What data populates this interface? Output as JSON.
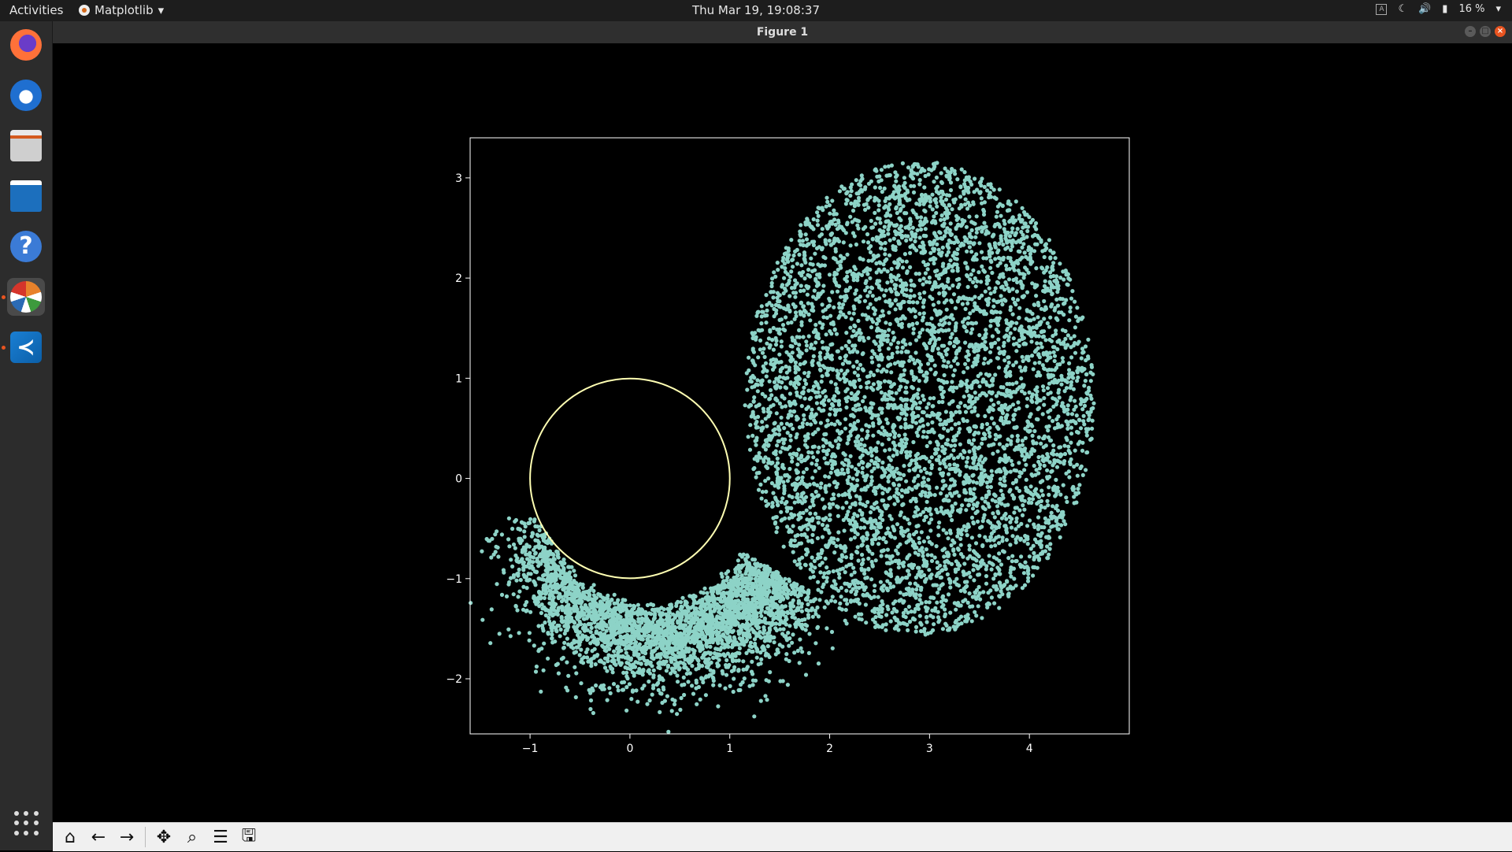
{
  "topbar": {
    "activities": "Activities",
    "app_name": "Matplotlib",
    "app_menu_arrow": "▾",
    "clock": "Thu Mar 19, 19:08:37",
    "tray_a": "A",
    "battery": "16 %",
    "tray_arrow": "▾"
  },
  "dock": {
    "items": [
      "Firefox",
      "Thunderbird",
      "Files",
      "LibreOffice Writer",
      "Help",
      "Matplotlib",
      "Visual Studio Code"
    ],
    "show_apps_icon": "grid-icon"
  },
  "window": {
    "title": "Figure 1",
    "controls": [
      "minimize",
      "maximize",
      "close"
    ]
  },
  "toolbar": {
    "buttons": [
      {
        "name": "home",
        "glyph": "⌂"
      },
      {
        "name": "back",
        "glyph": "←"
      },
      {
        "name": "forward",
        "glyph": "→"
      },
      {
        "name": "pan",
        "glyph": "✥"
      },
      {
        "name": "zoom",
        "glyph": "⌕"
      },
      {
        "name": "configure",
        "glyph": "☰"
      },
      {
        "name": "save",
        "glyph": "🖫"
      }
    ]
  },
  "chart_data": {
    "type": "scatter",
    "title": "",
    "xlabel": "",
    "ylabel": "",
    "xlim": [
      -1.6,
      5.0
    ],
    "ylim": [
      -2.55,
      3.4
    ],
    "xticks": [
      -1,
      0,
      1,
      2,
      3,
      4
    ],
    "yticks": [
      -2,
      -1,
      0,
      1,
      2,
      3
    ],
    "xtick_labels": [
      "−1",
      "0",
      "1",
      "2",
      "3",
      "4"
    ],
    "ytick_labels": [
      "−2",
      "−1",
      "0",
      "1",
      "2",
      "3"
    ],
    "grid": false,
    "background": "#000000",
    "point_color": "#8dd3c7",
    "circle_color": "#ffffb3",
    "circle": {
      "cx": 0,
      "cy": 0,
      "r": 1
    },
    "clusters": [
      {
        "name": "",
        "center": [
          2.9,
          0.8
        ],
        "radius": 1.75,
        "count": 5200
      },
      {
        "name": "",
        "arc_center": [
          0.2,
          -0.2
        ],
        "arc_inner": 1.0,
        "arc_outer": 1.9,
        "angle_from_deg": 110,
        "angle_to_deg": 330,
        "count": 3200
      }
    ]
  }
}
